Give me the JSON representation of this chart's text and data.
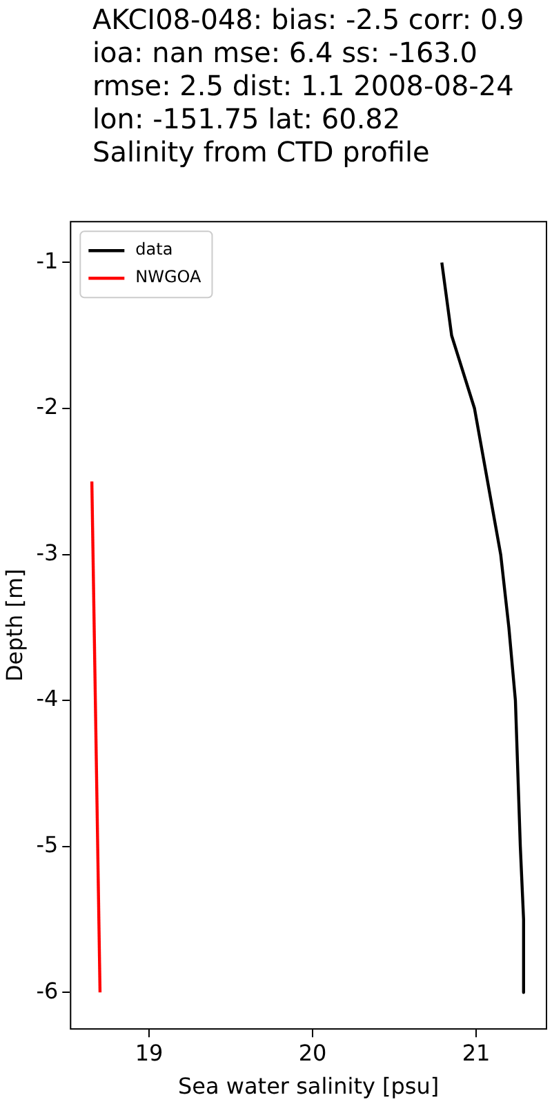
{
  "chart_data": {
    "type": "line",
    "title": "AKCI08-048: bias: -2.5  corr: 0.9  ioa: nan  mse: 6.4  ss: -163.0  rmse: 2.5  dist: 1.1 2008-08-24 lon: -151.75 lat: 60.82",
    "subtitle": "Salinity from CTD profile",
    "xlabel": "Sea water salinity [psu]",
    "ylabel": "Depth [m]",
    "series": [
      {
        "name": "data",
        "color": "#000000",
        "x": [
          20.79,
          20.85,
          20.99,
          21.15,
          21.2,
          21.24,
          21.27,
          21.29,
          21.29
        ],
        "values": [
          -1,
          -1.5,
          -2,
          -3,
          -3.5,
          -4,
          -5,
          -5.5,
          -6
        ]
      },
      {
        "name": "NWGOA",
        "color": "#ff0000",
        "x": [
          18.65,
          18.7
        ],
        "values": [
          -2.5,
          -6
        ]
      }
    ],
    "xlim": [
      18.52,
      21.43
    ],
    "xticks": [
      19,
      20,
      21
    ],
    "ylim": [
      -6.25,
      -0.72
    ],
    "yticks": [
      -6,
      -5,
      -4,
      -3,
      -2,
      -1
    ],
    "grid": false,
    "legend": "top left",
    "marker": "none",
    "line_style": "solid"
  }
}
